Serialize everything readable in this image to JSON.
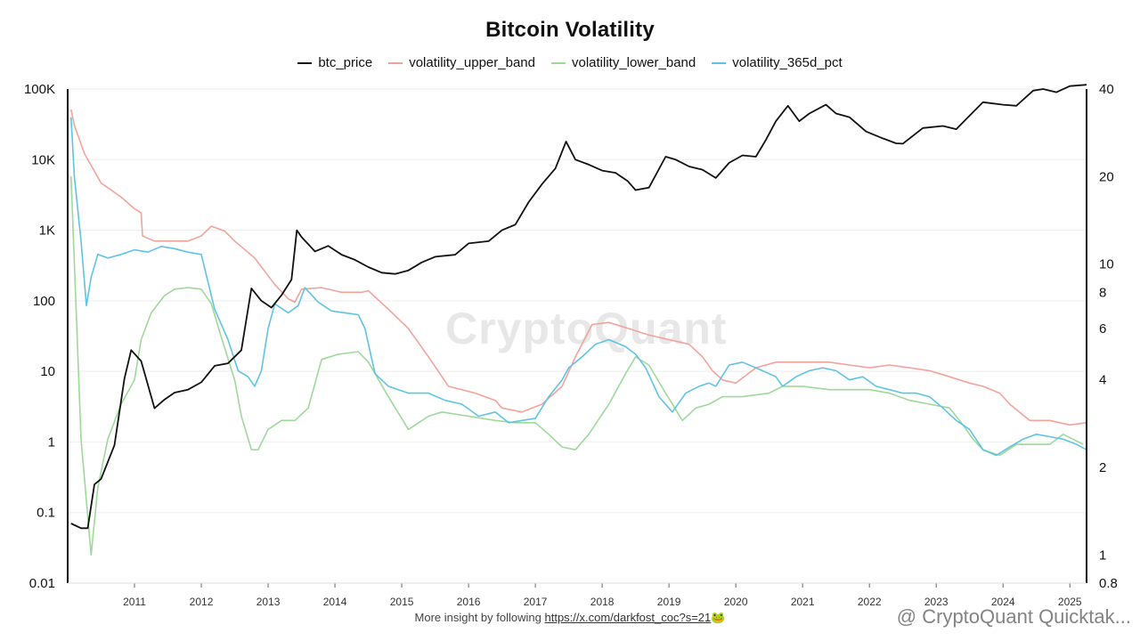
{
  "title": "Bitcoin Volatility",
  "watermark": "CryptoQuant",
  "signature": "@ CryptoQuant Quicktak...",
  "footer": {
    "text": "More insight by following ",
    "link": "https://x.com/darkfost_coc?s=21",
    "emoji": "🐸"
  },
  "colors": {
    "btc_price": "#111111",
    "volatility_upper_band": "#f2a39a",
    "volatility_lower_band": "#9ed99a",
    "volatility_365d_pct": "#5fc3e4",
    "grid": "#eeeeee",
    "axis": "#111111"
  },
  "chart_data": {
    "type": "line",
    "title": "Bitcoin Volatility",
    "x_ticks": [
      "2011",
      "2012",
      "2013",
      "2014",
      "2015",
      "2016",
      "2017",
      "2018",
      "2019",
      "2020",
      "2021",
      "2022",
      "2023",
      "2024",
      "2025"
    ],
    "xlim": [
      2010.5,
      2025.75
    ],
    "y_left": {
      "scale": "log",
      "lim": [
        0.01,
        100000
      ],
      "ticks": [
        0.01,
        0.1,
        1,
        10,
        100,
        1000,
        10000,
        100000
      ],
      "tick_labels": [
        "0.01",
        "0.1",
        "1",
        "10",
        "100",
        "1K",
        "10K",
        "100K"
      ]
    },
    "y_right": {
      "scale": "log",
      "lim": [
        0.8,
        40
      ],
      "ticks": [
        0.8,
        1,
        2,
        4,
        6,
        8,
        10,
        20,
        40
      ],
      "tick_labels": [
        "0.8",
        "1",
        "2",
        "4",
        "6",
        "8",
        "10",
        "20",
        "40"
      ]
    },
    "series": [
      {
        "name": "btc_price",
        "axis": "left",
        "x": [
          2010.55,
          2010.7,
          2010.8,
          2010.9,
          2011.0,
          2011.2,
          2011.35,
          2011.45,
          2011.6,
          2011.8,
          2011.95,
          2012.1,
          2012.3,
          2012.5,
          2012.7,
          2012.9,
          2013.1,
          2013.25,
          2013.4,
          2013.55,
          2013.7,
          2013.85,
          2013.93,
          2014.0,
          2014.2,
          2014.4,
          2014.6,
          2014.8,
          2015.0,
          2015.2,
          2015.4,
          2015.6,
          2015.8,
          2016.0,
          2016.3,
          2016.5,
          2016.8,
          2017.0,
          2017.2,
          2017.4,
          2017.6,
          2017.8,
          2017.96,
          2018.1,
          2018.3,
          2018.5,
          2018.7,
          2018.88,
          2019.0,
          2019.2,
          2019.45,
          2019.6,
          2019.8,
          2020.0,
          2020.2,
          2020.4,
          2020.6,
          2020.8,
          2020.95,
          2021.1,
          2021.28,
          2021.45,
          2021.6,
          2021.85,
          2022.0,
          2022.2,
          2022.45,
          2022.7,
          2022.9,
          2023.0,
          2023.3,
          2023.6,
          2023.8,
          2024.0,
          2024.2,
          2024.5,
          2024.7,
          2024.95,
          2025.1,
          2025.3,
          2025.5,
          2025.75
        ],
        "y": [
          0.07,
          0.06,
          0.06,
          0.25,
          0.3,
          0.9,
          8,
          20,
          14,
          3,
          4,
          5,
          5.5,
          7,
          12,
          13,
          20,
          150,
          100,
          80,
          120,
          200,
          1000,
          800,
          500,
          600,
          450,
          380,
          300,
          250,
          240,
          270,
          350,
          420,
          450,
          650,
          700,
          1000,
          1200,
          2500,
          4500,
          7500,
          18000,
          10000,
          8500,
          7000,
          6500,
          5000,
          3700,
          4000,
          11000,
          10000,
          8000,
          7200,
          5500,
          9000,
          11500,
          11000,
          19000,
          35000,
          58000,
          35000,
          45000,
          60000,
          45000,
          40000,
          25000,
          20000,
          17000,
          16800,
          28000,
          30000,
          27000,
          42000,
          65000,
          60000,
          58000,
          95000,
          100000,
          90000,
          110000,
          115000
        ]
      },
      {
        "name": "volatility_upper_band",
        "axis": "right",
        "x": [
          2010.55,
          2010.6,
          2010.75,
          2011.0,
          2011.3,
          2011.5,
          2011.6,
          2011.62,
          2011.8,
          2012.0,
          2012.3,
          2012.5,
          2012.65,
          2012.85,
          2013.0,
          2013.3,
          2013.6,
          2013.8,
          2013.9,
          2014.0,
          2014.3,
          2014.6,
          2014.9,
          2015.0,
          2015.3,
          2015.6,
          2015.9,
          2016.2,
          2016.6,
          2016.9,
          2017.0,
          2017.3,
          2017.6,
          2017.9,
          2018.1,
          2018.35,
          2018.6,
          2018.9,
          2019.2,
          2019.5,
          2019.8,
          2020.0,
          2020.15,
          2020.3,
          2020.5,
          2020.8,
          2021.1,
          2021.5,
          2021.9,
          2022.2,
          2022.5,
          2022.8,
          2023.1,
          2023.4,
          2023.7,
          2024.0,
          2024.2,
          2024.45,
          2024.6,
          2024.9,
          2025.2,
          2025.5,
          2025.75
        ],
        "y": [
          34,
          30,
          24,
          19,
          17,
          15.5,
          15,
          12.5,
          12,
          12,
          12,
          12.5,
          13.5,
          13,
          12,
          10.5,
          8.5,
          7.6,
          7.4,
          8.2,
          8.3,
          8,
          8,
          8.1,
          7,
          6,
          4.8,
          3.8,
          3.6,
          3.4,
          3.2,
          3.1,
          3.3,
          3.8,
          4.8,
          6.2,
          6.3,
          6.0,
          5.7,
          5.5,
          5.3,
          4.8,
          4.3,
          4.0,
          3.9,
          4.4,
          4.6,
          4.6,
          4.6,
          4.5,
          4.4,
          4.5,
          4.4,
          4.3,
          4.1,
          3.9,
          3.8,
          3.6,
          3.3,
          2.9,
          2.9,
          2.8,
          2.85
        ]
      },
      {
        "name": "volatility_lower_band",
        "axis": "right",
        "x": [
          2010.55,
          2010.7,
          2010.85,
          2010.95,
          2011.1,
          2011.3,
          2011.5,
          2011.6,
          2011.75,
          2011.95,
          2012.1,
          2012.3,
          2012.5,
          2012.65,
          2012.8,
          2013.0,
          2013.1,
          2013.25,
          2013.35,
          2013.5,
          2013.7,
          2013.9,
          2014.1,
          2014.3,
          2014.55,
          2014.85,
          2015.0,
          2015.3,
          2015.6,
          2015.9,
          2016.1,
          2016.5,
          2016.9,
          2017.2,
          2017.5,
          2017.7,
          2017.9,
          2018.1,
          2018.3,
          2018.6,
          2018.85,
          2019.0,
          2019.2,
          2019.45,
          2019.7,
          2019.9,
          2020.1,
          2020.3,
          2020.6,
          2021.0,
          2021.2,
          2021.5,
          2021.9,
          2022.2,
          2022.5,
          2022.8,
          2023.1,
          2023.4,
          2023.7,
          2023.9,
          2024.05,
          2024.2,
          2024.45,
          2024.7,
          2024.9,
          2025.2,
          2025.4,
          2025.7
        ],
        "y": [
          20,
          2.5,
          1.0,
          1.7,
          2.5,
          3.3,
          4,
          5.5,
          6.8,
          7.8,
          8.2,
          8.3,
          8.2,
          7.3,
          5.6,
          4.0,
          3.0,
          2.3,
          2.3,
          2.7,
          2.9,
          2.9,
          3.2,
          4.7,
          4.9,
          5.0,
          4.6,
          3.5,
          2.7,
          3.0,
          3.1,
          3.0,
          2.9,
          2.85,
          2.85,
          2.6,
          2.35,
          2.3,
          2.6,
          3.3,
          4.2,
          4.8,
          4.5,
          3.6,
          2.9,
          3.2,
          3.3,
          3.5,
          3.5,
          3.6,
          3.8,
          3.8,
          3.7,
          3.7,
          3.7,
          3.6,
          3.4,
          3.3,
          3.2,
          2.8,
          2.5,
          2.3,
          2.2,
          2.4,
          2.4,
          2.4,
          2.6,
          2.4
        ]
      },
      {
        "name": "volatility_365d_pct",
        "axis": "right",
        "x": [
          2010.55,
          2010.6,
          2010.7,
          2010.78,
          2010.85,
          2010.95,
          2011.1,
          2011.3,
          2011.5,
          2011.7,
          2011.9,
          2012.1,
          2012.3,
          2012.5,
          2012.7,
          2012.9,
          2013.05,
          2013.2,
          2013.3,
          2013.4,
          2013.5,
          2013.6,
          2013.8,
          2013.95,
          2014.05,
          2014.25,
          2014.45,
          2014.65,
          2014.85,
          2014.95,
          2015.1,
          2015.3,
          2015.6,
          2015.9,
          2016.15,
          2016.4,
          2016.65,
          2016.9,
          2017.1,
          2017.3,
          2017.5,
          2017.7,
          2017.9,
          2018.0,
          2018.2,
          2018.4,
          2018.6,
          2018.85,
          2019.0,
          2019.15,
          2019.35,
          2019.55,
          2019.75,
          2019.95,
          2020.1,
          2020.2,
          2020.4,
          2020.6,
          2020.9,
          2021.1,
          2021.2,
          2021.4,
          2021.6,
          2021.8,
          2022.0,
          2022.2,
          2022.4,
          2022.6,
          2022.8,
          2023.0,
          2023.2,
          2023.4,
          2023.6,
          2023.8,
          2024.0,
          2024.2,
          2024.4,
          2024.6,
          2024.8,
          2025.0,
          2025.2,
          2025.4,
          2025.6,
          2025.75
        ],
        "y": [
          32,
          20,
          12,
          7.2,
          9,
          10.8,
          10.5,
          10.8,
          11.2,
          11.0,
          11.5,
          11.3,
          11.0,
          10.8,
          7.0,
          5.5,
          4.3,
          4.1,
          3.8,
          4.3,
          6.0,
          7.3,
          6.8,
          7.2,
          8.3,
          7.4,
          6.9,
          6.8,
          6.7,
          6.0,
          4.2,
          3.8,
          3.6,
          3.6,
          3.4,
          3.3,
          3.0,
          3.1,
          2.85,
          2.9,
          2.95,
          3.5,
          4.0,
          4.4,
          4.8,
          5.3,
          5.5,
          5.2,
          4.9,
          4.4,
          3.5,
          3.1,
          3.6,
          3.8,
          3.9,
          3.8,
          4.5,
          4.6,
          4.3,
          4.1,
          3.8,
          4.1,
          4.3,
          4.4,
          4.3,
          4.0,
          4.1,
          3.8,
          3.7,
          3.6,
          3.6,
          3.5,
          3.2,
          2.9,
          2.7,
          2.3,
          2.2,
          2.35,
          2.5,
          2.6,
          2.55,
          2.5,
          2.4,
          2.3
        ]
      }
    ]
  }
}
